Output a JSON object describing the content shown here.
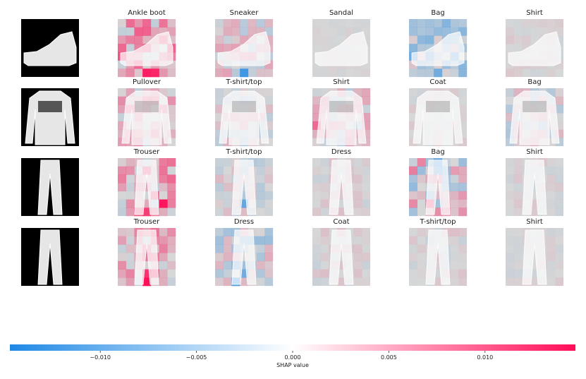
{
  "chart_data": {
    "type": "heatmap",
    "rows": [
      {
        "input_item": "ankle-boot",
        "panels": [
          {
            "title": "Ankle boot"
          },
          {
            "title": "Sneaker"
          },
          {
            "title": "Sandal"
          },
          {
            "title": "Bag"
          },
          {
            "title": "Shirt"
          }
        ]
      },
      {
        "input_item": "pullover-with-lee-logo",
        "panels": [
          {
            "title": "Pullover"
          },
          {
            "title": "T-shirt/top"
          },
          {
            "title": "Shirt"
          },
          {
            "title": "Coat"
          },
          {
            "title": "Bag"
          }
        ]
      },
      {
        "input_item": "trouser",
        "panels": [
          {
            "title": "Trouser"
          },
          {
            "title": "T-shirt/top"
          },
          {
            "title": "Dress"
          },
          {
            "title": "Bag"
          },
          {
            "title": "Shirt"
          }
        ]
      },
      {
        "input_item": "trouser",
        "panels": [
          {
            "title": "Trouser"
          },
          {
            "title": "Dress"
          },
          {
            "title": "Coat"
          },
          {
            "title": "T-shirt/top"
          },
          {
            "title": "Shirt"
          }
        ]
      }
    ],
    "colorbar": {
      "label": "SHAP value",
      "range": [
        -0.0147,
        0.0147
      ],
      "ticks": [
        "−0.010",
        "−0.005",
        "0.000",
        "0.005",
        "0.010"
      ],
      "tick_values": [
        -0.01,
        -0.005,
        0.0,
        0.005,
        0.01
      ],
      "negative_color": "#1e88e5",
      "zero_color": "#ffffff",
      "positive_color": "#ff0d57"
    },
    "grid_cells": "7x7 coarse SHAP value grid over each 28x28 image",
    "colors": {
      "panel_background": "#d7d7d7",
      "input_background": "#000000"
    }
  }
}
